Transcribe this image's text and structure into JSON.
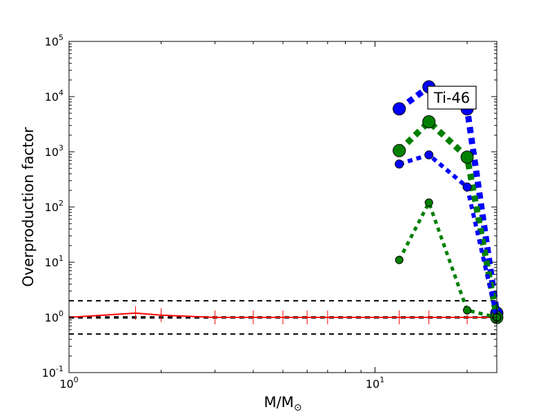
{
  "chart_data": {
    "type": "line",
    "xlabel": {
      "main": "M/M",
      "sub": "⊙"
    },
    "ylabel": "Overproduction factor",
    "x_scale": "log",
    "y_scale": "log",
    "xlim": [
      1,
      25
    ],
    "ylim": [
      0.1,
      100000
    ],
    "x_ticks": [
      {
        "base": "10",
        "exp": "0",
        "value": 1
      },
      {
        "base": "10",
        "exp": "1",
        "value": 10
      }
    ],
    "y_ticks": [
      {
        "base": "10",
        "exp": "-1",
        "value": 0.1
      },
      {
        "base": "10",
        "exp": "0",
        "value": 1
      },
      {
        "base": "10",
        "exp": "1",
        "value": 10
      },
      {
        "base": "10",
        "exp": "2",
        "value": 100
      },
      {
        "base": "10",
        "exp": "3",
        "value": 1000
      },
      {
        "base": "10",
        "exp": "4",
        "value": 10000
      },
      {
        "base": "10",
        "exp": "5",
        "value": 100000
      }
    ],
    "annotation": "Ti-46",
    "reference_lines": [
      {
        "y": 2,
        "color": "#000000",
        "style": "dashed"
      },
      {
        "y": 1,
        "color": "#000000",
        "style": "dashed-thick"
      },
      {
        "y": 0.5,
        "color": "#000000",
        "style": "dashed"
      }
    ],
    "series": [
      {
        "color": "#ff0000",
        "style": "solid",
        "marker": "vline",
        "x": [
          1,
          1.65,
          2,
          3,
          4,
          5,
          6,
          7,
          12,
          15,
          20,
          25
        ],
        "y": [
          1.0,
          1.2,
          1.1,
          1.0,
          1.0,
          1.0,
          1.0,
          1.0,
          1.0,
          1.0,
          1.0,
          1.0
        ]
      },
      {
        "color": "#0000ff",
        "style": "dotted",
        "marker": "circle",
        "weight": "heavy",
        "x": [
          12,
          15,
          20,
          25
        ],
        "y": [
          6000,
          15000,
          6000,
          1.2
        ]
      },
      {
        "color": "#008000",
        "style": "dotted",
        "marker": "circle",
        "weight": "heavy",
        "x": [
          12,
          15,
          20,
          25
        ],
        "y": [
          1050,
          3500,
          800,
          1.0
        ]
      },
      {
        "color": "#0000ff",
        "style": "dotted",
        "marker": "circle",
        "weight": "medium",
        "x": [
          12,
          15,
          20,
          25
        ],
        "y": [
          600,
          880,
          230,
          1.0
        ]
      },
      {
        "color": "#008000",
        "style": "dotted",
        "marker": "circle",
        "weight": "light",
        "x": [
          12,
          15,
          20,
          25
        ],
        "y": [
          11,
          120,
          1.35,
          1.0
        ]
      }
    ]
  }
}
